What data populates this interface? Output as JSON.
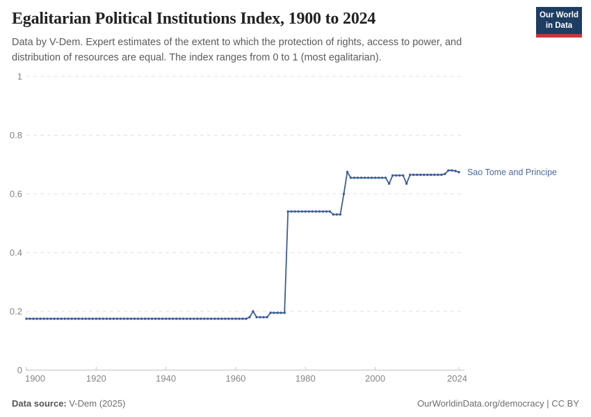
{
  "header": {
    "title": "Egalitarian Political Institutions Index, 1900 to 2024",
    "subtitle": "Data by V-Dem. Expert estimates of the extent to which the protection of rights, access to power, and\ndistribution of resources are equal. The index ranges from 0 to 1 (most egalitarian).",
    "logo_text": "Our World\nin Data"
  },
  "footer": {
    "source_label": "Data source:",
    "source_value": "V-Dem (2025)",
    "url": "OurWorldinData.org/democracy",
    "separator": "|",
    "license": "CC BY"
  },
  "colors": {
    "line": "#3D5C9B",
    "entity_label": "#4C6A9C",
    "logo_bg": "#1D3D63",
    "logo_bar": "#C63838",
    "grid": "#E0E0E0",
    "axis": "#C2C2C2",
    "tick_text": "#848484"
  },
  "chart_data": {
    "type": "line",
    "title": "Egalitarian Political Institutions Index, 1900 to 2024",
    "xlabel": "",
    "ylabel": "",
    "xlim": [
      1900,
      2024
    ],
    "ylim": [
      0,
      1
    ],
    "grid": "horizontal-dashed",
    "legend": "end-of-line-label",
    "x_ticks": {
      "values": [
        1900,
        1920,
        1940,
        1960,
        1980,
        2000,
        2024
      ],
      "labels": [
        "1900",
        "1920",
        "1940",
        "1960",
        "1980",
        "2000",
        "2024"
      ]
    },
    "y_ticks": {
      "values": [
        0,
        0.2,
        0.4,
        0.6,
        0.8,
        1
      ],
      "labels": [
        "0",
        "0.2",
        "0.4",
        "0.6",
        "0.8",
        "1"
      ]
    },
    "label_color": "#4C6A9C",
    "series": [
      {
        "name": "Sao Tome and Principe",
        "color": "#3D5C9B",
        "year_start": 1900,
        "values": [
          0.175,
          0.175,
          0.175,
          0.175,
          0.175,
          0.175,
          0.175,
          0.175,
          0.175,
          0.175,
          0.175,
          0.175,
          0.175,
          0.175,
          0.175,
          0.175,
          0.175,
          0.175,
          0.175,
          0.175,
          0.175,
          0.175,
          0.175,
          0.175,
          0.175,
          0.175,
          0.175,
          0.175,
          0.175,
          0.175,
          0.175,
          0.175,
          0.175,
          0.175,
          0.175,
          0.175,
          0.175,
          0.175,
          0.175,
          0.175,
          0.175,
          0.175,
          0.175,
          0.175,
          0.175,
          0.175,
          0.175,
          0.175,
          0.175,
          0.175,
          0.175,
          0.175,
          0.175,
          0.175,
          0.175,
          0.175,
          0.175,
          0.175,
          0.175,
          0.175,
          0.175,
          0.175,
          0.175,
          0.175,
          0.18,
          0.2,
          0.18,
          0.18,
          0.18,
          0.18,
          0.195,
          0.195,
          0.195,
          0.195,
          0.195,
          0.54,
          0.54,
          0.54,
          0.54,
          0.54,
          0.54,
          0.54,
          0.54,
          0.54,
          0.54,
          0.54,
          0.54,
          0.54,
          0.53,
          0.53,
          0.53,
          0.6,
          0.675,
          0.655,
          0.655,
          0.655,
          0.655,
          0.655,
          0.655,
          0.655,
          0.655,
          0.655,
          0.655,
          0.655,
          0.635,
          0.663,
          0.663,
          0.663,
          0.663,
          0.635,
          0.665,
          0.665,
          0.665,
          0.665,
          0.665,
          0.665,
          0.665,
          0.665,
          0.665,
          0.665,
          0.668,
          0.68,
          0.68,
          0.678,
          0.674
        ]
      }
    ]
  }
}
